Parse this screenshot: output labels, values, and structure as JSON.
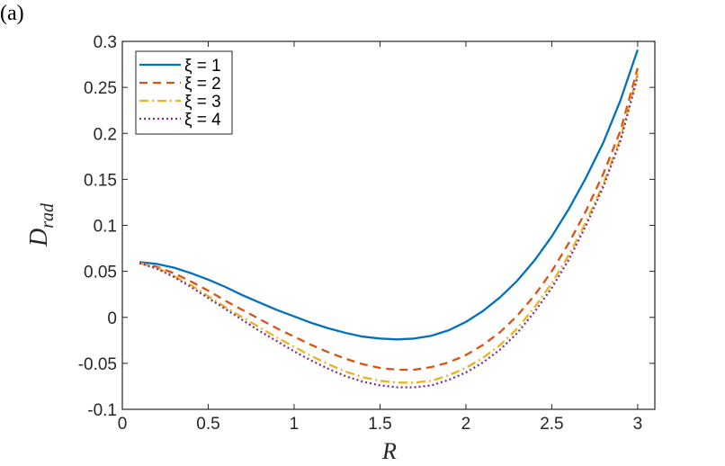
{
  "panel_label": "(a)",
  "chart_data": {
    "type": "line",
    "xlabel": "R",
    "ylabel": "D",
    "ylabel_subscript": "rad",
    "xlim": [
      0,
      3.1
    ],
    "ylim": [
      -0.1,
      0.3
    ],
    "xticks": [
      0,
      0.5,
      1,
      1.5,
      2,
      2.5,
      3
    ],
    "xtick_labels": [
      "0",
      "0.5",
      "1",
      "1.5",
      "2",
      "2.5",
      "3"
    ],
    "yticks": [
      -0.1,
      -0.05,
      0,
      0.05,
      0.1,
      0.15,
      0.2,
      0.25,
      0.3
    ],
    "ytick_labels": [
      "-0.1",
      "-0.05",
      "0",
      "0.05",
      "0.1",
      "0.15",
      "0.2",
      "0.25",
      "0.3"
    ],
    "grid": false,
    "legend_position": "top-left",
    "x": [
      0.1,
      0.2,
      0.3,
      0.4,
      0.5,
      0.6,
      0.7,
      0.8,
      0.9,
      1.0,
      1.1,
      1.2,
      1.3,
      1.4,
      1.5,
      1.6,
      1.7,
      1.8,
      1.9,
      2.0,
      2.1,
      2.2,
      2.3,
      2.4,
      2.5,
      2.6,
      2.7,
      2.8,
      2.9,
      3.0
    ],
    "series": [
      {
        "name": "ξ = 1",
        "color": "#0072BD",
        "dash": "solid",
        "values": [
          0.06,
          0.058,
          0.054,
          0.048,
          0.041,
          0.033,
          0.024,
          0.016,
          0.008,
          0.001,
          -0.006,
          -0.012,
          -0.017,
          -0.021,
          -0.023,
          -0.024,
          -0.023,
          -0.02,
          -0.014,
          -0.005,
          0.007,
          0.022,
          0.04,
          0.062,
          0.088,
          0.118,
          0.152,
          0.19,
          0.236,
          0.291
        ]
      },
      {
        "name": "ξ = 2",
        "color": "#D95319",
        "dash": "dashed",
        "values": [
          0.059,
          0.055,
          0.048,
          0.039,
          0.029,
          0.018,
          0.008,
          -0.002,
          -0.012,
          -0.021,
          -0.03,
          -0.038,
          -0.045,
          -0.051,
          -0.055,
          -0.057,
          -0.057,
          -0.054,
          -0.049,
          -0.041,
          -0.03,
          -0.016,
          0.002,
          0.024,
          0.05,
          0.081,
          0.116,
          0.156,
          0.203,
          0.271
        ]
      },
      {
        "name": "ξ = 3",
        "color": "#EDB120",
        "dash": "dashdot",
        "values": [
          0.059,
          0.054,
          0.045,
          0.035,
          0.023,
          0.011,
          0.0,
          -0.011,
          -0.022,
          -0.032,
          -0.042,
          -0.051,
          -0.059,
          -0.065,
          -0.069,
          -0.071,
          -0.071,
          -0.069,
          -0.063,
          -0.055,
          -0.044,
          -0.03,
          -0.012,
          0.011,
          0.037,
          0.068,
          0.104,
          0.145,
          0.195,
          0.265
        ]
      },
      {
        "name": "ξ = 4",
        "color": "#7E2F8E",
        "dash": "dotted",
        "values": [
          0.059,
          0.053,
          0.044,
          0.033,
          0.021,
          0.009,
          -0.003,
          -0.015,
          -0.026,
          -0.037,
          -0.047,
          -0.056,
          -0.064,
          -0.07,
          -0.074,
          -0.076,
          -0.076,
          -0.074,
          -0.068,
          -0.06,
          -0.049,
          -0.035,
          -0.017,
          0.006,
          0.032,
          0.063,
          0.1,
          0.142,
          0.192,
          0.262
        ]
      }
    ]
  }
}
